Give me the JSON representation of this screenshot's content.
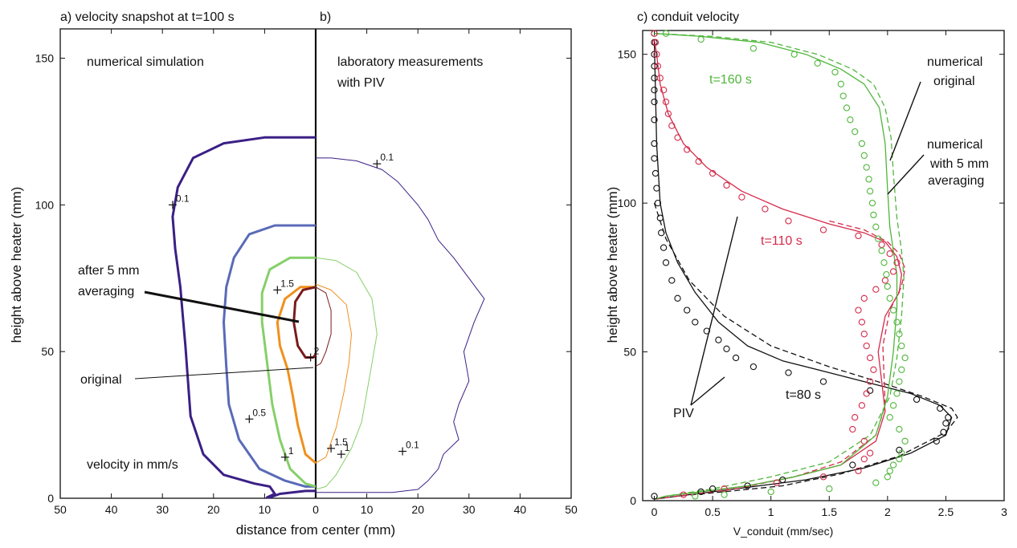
{
  "panels": {
    "a": {
      "title": "a) velocity snapshot at t=100 s",
      "note_left": "numerical simulation",
      "note_units": "velocity in mm/s",
      "annotation_averaging": [
        "after 5 mm",
        "averaging"
      ],
      "annotation_original": "original"
    },
    "b": {
      "title": "b)",
      "note_right": [
        "laboratory measurements",
        "with PIV"
      ]
    },
    "c": {
      "title": "c)  conduit velocity",
      "legend_original": [
        "numerical",
        "original"
      ],
      "legend_averaging": [
        "numerical",
        "with 5 mm",
        "averaging"
      ],
      "label_piv": "PIV"
    }
  },
  "chart_data": [
    {
      "type": "line",
      "title": "a) velocity snapshot at t=100 s / b)",
      "xlabel": "distance from center (mm)",
      "ylabel": "height above heater (mm)",
      "xlim": [
        -50,
        50
      ],
      "ylim": [
        0,
        160
      ],
      "x_tick_labels": [
        "50",
        "40",
        "30",
        "20",
        "10",
        "0",
        "10",
        "20",
        "30",
        "40",
        "50"
      ],
      "y_ticks": [
        0,
        50,
        100,
        150
      ],
      "contour_labels": [
        "0.1",
        "0.5",
        "1",
        "1.5",
        "2",
        "0.1",
        "1",
        "1.5",
        "0.1"
      ],
      "colors": {
        "c0.1": "#3b1f86",
        "c0.5": "#5a6ab8",
        "c1": "#86cf6a",
        "c1.5": "#f0901e",
        "c2": "#7a1c1c"
      },
      "series": [
        {
          "name": "0.1 (numerical)",
          "color": "#3b1f86",
          "x": [
            0,
            -10,
            -18,
            -24,
            -27,
            -28,
            -27.5,
            -26.5,
            -26,
            -25.5,
            -25,
            -24.5,
            -22,
            -18,
            -12,
            -9,
            -8,
            -9.5,
            -9,
            -7,
            -2,
            0
          ],
          "y": [
            123,
            123,
            121,
            116,
            106,
            96,
            85,
            72,
            62,
            52,
            40,
            28,
            15,
            8,
            5,
            4,
            1.5,
            0.3,
            0.3,
            1.5,
            2.5,
            2.5
          ]
        },
        {
          "name": "0.5 (numerical)",
          "color": "#5a6ab8",
          "x": [
            0,
            -8,
            -13,
            -16,
            -17.5,
            -18,
            -17.5,
            -17,
            -15,
            -11,
            -6,
            -2,
            0
          ],
          "y": [
            93,
            93,
            90,
            82,
            72,
            60,
            45,
            32,
            20,
            10,
            6,
            4,
            4
          ]
        },
        {
          "name": "1 (numerical)",
          "color": "#86cf6a",
          "x": [
            0,
            -5,
            -9,
            -10.5,
            -10.5,
            -9.5,
            -8.5,
            -7,
            -5,
            -2,
            0
          ],
          "y": [
            82,
            82,
            78,
            70,
            60,
            46,
            32,
            20,
            10,
            5,
            4
          ]
        },
        {
          "name": "1.5 (numerical)",
          "color": "#f0901e",
          "x": [
            0,
            -3,
            -6,
            -7.5,
            -7,
            -5.5,
            -4.5,
            -3.5,
            -2,
            0
          ],
          "y": [
            72,
            72,
            68,
            60,
            52,
            44,
            35,
            25,
            15,
            12
          ]
        },
        {
          "name": "2 (numerical)",
          "color": "#7a1c1c",
          "x": [
            0,
            -2.5,
            -4,
            -4.3,
            -3.5,
            -2,
            -0.5,
            0
          ],
          "y": [
            72,
            71,
            67,
            60,
            52,
            48,
            48,
            49
          ]
        },
        {
          "name": "0.1 (PIV)",
          "color": "#3b1f86",
          "x": [
            0,
            3,
            8,
            13,
            16,
            20,
            22,
            24,
            27,
            30,
            33,
            31,
            29,
            30,
            28,
            27,
            28,
            25,
            24,
            22,
            20,
            15,
            12,
            8,
            5,
            2,
            0
          ],
          "y": [
            116,
            116,
            115,
            112,
            108,
            100,
            95,
            88,
            82,
            75,
            68,
            60,
            50,
            40,
            32,
            26,
            20,
            15,
            10,
            6,
            3,
            2,
            2,
            2,
            2,
            2,
            2
          ]
        },
        {
          "name": "1 (PIV)",
          "color": "#86cf6a",
          "x": [
            0,
            4,
            8,
            11,
            12,
            11,
            10,
            9,
            7,
            4,
            2,
            0
          ],
          "y": [
            82,
            81,
            77,
            68,
            56,
            46,
            36,
            26,
            17,
            8,
            4,
            3
          ]
        },
        {
          "name": "1.5 (PIV)",
          "color": "#f0901e",
          "x": [
            0,
            3,
            6,
            7,
            6.5,
            5.5,
            4,
            2,
            0
          ],
          "y": [
            73,
            71,
            66,
            56,
            46,
            36,
            24,
            14,
            12
          ]
        },
        {
          "name": "2 (PIV)",
          "color": "#7a1c1c",
          "x": [
            0,
            2,
            3,
            3,
            2,
            1,
            0
          ],
          "y": [
            72,
            70,
            64,
            56,
            50,
            46,
            45
          ]
        }
      ]
    },
    {
      "type": "line",
      "title": "c)  conduit velocity",
      "xlabel": "V_conduit (mm/sec)",
      "ylabel": "height above heater (mm)",
      "xlim": [
        -0.1,
        3
      ],
      "ylim": [
        0,
        158
      ],
      "x_ticks": [
        0,
        0.5,
        1,
        1.5,
        2,
        2.5,
        3
      ],
      "y_ticks": [
        0,
        50,
        100,
        150
      ],
      "series_labels": [
        "t=160 s",
        "t=110 s",
        "t=80 s"
      ],
      "series": [
        {
          "name": "t=80 s",
          "color": "#111111",
          "style": "solid",
          "x": [
            0,
            0.02,
            0.05,
            0.1,
            0.2,
            0.35,
            0.55,
            0.8,
            1.1,
            1.5,
            1.9,
            2.2,
            2.45,
            2.55,
            2.5,
            2.2,
            1.8,
            1.3,
            0.9,
            0.5,
            0.2,
            0
          ],
          "y": [
            155,
            120,
            100,
            90,
            80,
            70,
            60,
            52,
            47,
            43,
            39,
            36,
            32,
            28,
            22,
            16,
            11,
            7,
            5,
            3,
            1.5,
            0.5
          ]
        },
        {
          "name": "t=80 s averaged",
          "color": "#111111",
          "style": "dashed",
          "x": [
            0,
            0.1,
            0.3,
            0.6,
            1,
            1.5,
            2,
            2.3,
            2.55,
            2.6,
            2.5,
            2.1,
            1.6,
            1.1,
            0.6,
            0.2,
            0
          ],
          "y": [
            100,
            88,
            74,
            62,
            52,
            45,
            39,
            35,
            31,
            28,
            23,
            15,
            9,
            5,
            3,
            1.5,
            0.5
          ]
        },
        {
          "name": "t=110 s",
          "color": "#d42a4a",
          "style": "solid",
          "x": [
            0,
            0.02,
            0.05,
            0.12,
            0.25,
            0.45,
            0.75,
            1.1,
            1.5,
            1.8,
            1.98,
            2.08,
            2.12,
            2.1,
            1.98,
            1.92,
            1.95,
            1.98,
            1.9,
            1.6,
            1.2,
            0.8,
            0.4,
            0.1,
            0
          ],
          "y": [
            155,
            150,
            140,
            130,
            120,
            112,
            104,
            98,
            93,
            90,
            87,
            82,
            76,
            70,
            62,
            50,
            40,
            30,
            20,
            12,
            8,
            5,
            3,
            1.5,
            0.5
          ]
        },
        {
          "name": "t=110 s averaged",
          "color": "#d42a4a",
          "style": "dashed",
          "x": [
            1.5,
            1.8,
            2,
            2.1,
            2.15,
            2.12,
            2.02,
            1.96,
            1.97,
            1.98,
            1.9,
            1.6,
            1.2,
            0.7,
            0.3,
            0
          ],
          "y": [
            94,
            91,
            87,
            83,
            78,
            72,
            64,
            52,
            42,
            32,
            22,
            13,
            8,
            4,
            2,
            0.5
          ]
        },
        {
          "name": "t=160 s",
          "color": "#4fb63a",
          "style": "solid",
          "x": [
            0,
            0.4,
            0.9,
            1.3,
            1.6,
            1.8,
            1.93,
            1.98,
            2,
            2.02,
            2.05,
            2.08,
            2.08,
            2.05,
            2,
            1.9,
            1.6,
            1.2,
            0.8,
            0.4,
            0.1,
            0
          ],
          "y": [
            157,
            156,
            154,
            150,
            145,
            140,
            132,
            120,
            105,
            92,
            84,
            76,
            65,
            50,
            35,
            22,
            12,
            8,
            5,
            3,
            1.5,
            0.5
          ]
        },
        {
          "name": "t=160 s averaged",
          "color": "#4fb63a",
          "style": "dashed",
          "x": [
            0,
            0.5,
            1,
            1.4,
            1.7,
            1.88,
            1.98,
            2.03,
            2.05,
            2.08,
            2.12,
            2.14,
            2.12,
            2.08,
            2.02,
            1.85,
            1.5,
            1,
            0.5,
            0.1
          ],
          "y": [
            157,
            156,
            154,
            150,
            145,
            140,
            132,
            122,
            110,
            95,
            84,
            75,
            62,
            48,
            35,
            22,
            13,
            8,
            4,
            1.5
          ]
        },
        {
          "name": "PIV t=80 s",
          "color": "#111111",
          "style": "markers",
          "x": [
            0,
            0,
            0,
            0,
            0,
            0,
            0,
            0,
            0,
            0,
            0.01,
            0.02,
            0.03,
            0.05,
            0.06,
            0.08,
            0.1,
            0.15,
            0.2,
            0.28,
            0.35,
            0.45,
            0.55,
            0.62,
            0.7,
            0.85,
            1.15,
            1.45,
            1.85,
            2.25,
            2.45,
            2.52,
            2.5,
            2.48,
            2.42,
            2.1,
            1.7,
            1.1,
            0.8,
            0.5,
            0.4,
            0
          ],
          "y": [
            157,
            154,
            150,
            146,
            142,
            138,
            134,
            128,
            120,
            115,
            110,
            105,
            100,
            95,
            90,
            85,
            80,
            74,
            68,
            64,
            60,
            57,
            54,
            51,
            48,
            45,
            43,
            40,
            37,
            34,
            31,
            28,
            26,
            23,
            20,
            17,
            12,
            7,
            5,
            4,
            3,
            1.5
          ]
        },
        {
          "name": "PIV t=110 s",
          "color": "#d42a4a",
          "style": "markers",
          "x": [
            0,
            0.01,
            0.02,
            0.03,
            0.05,
            0.08,
            0.1,
            0.12,
            0.15,
            0.2,
            0.28,
            0.38,
            0.5,
            0.62,
            0.75,
            0.95,
            1.15,
            1.45,
            1.75,
            1.95,
            2.02,
            2.08,
            2.05,
            1.98,
            1.9,
            1.8,
            1.75,
            1.78,
            1.8,
            1.82,
            1.85,
            1.88,
            1.85,
            1.82,
            1.78,
            1.72,
            1.7,
            1.8,
            1.85,
            1.8,
            1.75,
            1.45,
            1.05,
            0.6,
            0.25
          ],
          "y": [
            157,
            154,
            150,
            146,
            142,
            138,
            134,
            130,
            126,
            122,
            118,
            114,
            110,
            106,
            102,
            98,
            94,
            91,
            89,
            86,
            83,
            80,
            77,
            74,
            71,
            68,
            64,
            60,
            56,
            52,
            48,
            44,
            40,
            36,
            32,
            28,
            24,
            20,
            16,
            14,
            10,
            8,
            6,
            4,
            2
          ]
        },
        {
          "name": "PIV t=160 s",
          "color": "#4fb63a",
          "style": "markers",
          "x": [
            0.1,
            0.4,
            0.85,
            1.2,
            1.4,
            1.55,
            1.6,
            1.62,
            1.65,
            1.68,
            1.72,
            1.78,
            1.8,
            1.82,
            1.84,
            1.85,
            1.87,
            1.88,
            1.9,
            1.92,
            1.95,
            1.97,
            1.99,
            2,
            2.02,
            2.05,
            2.08,
            2.1,
            2.12,
            2.15,
            2.12,
            2.1,
            2.08,
            2.05,
            2.02,
            2.1,
            2.15,
            2.12,
            2.1,
            2.05,
            2.02,
            2,
            1.9,
            1.5,
            1,
            0.6,
            0.35
          ],
          "y": [
            157,
            155,
            152,
            150,
            147,
            144,
            140,
            136,
            132,
            128,
            124,
            120,
            116,
            112,
            108,
            104,
            100,
            96,
            92,
            88,
            84,
            80,
            76,
            72,
            68,
            64,
            60,
            56,
            52,
            48,
            44,
            40,
            36,
            32,
            28,
            24,
            20,
            16,
            14,
            12,
            10,
            8,
            6,
            4,
            3,
            2,
            1.5
          ]
        }
      ]
    }
  ]
}
